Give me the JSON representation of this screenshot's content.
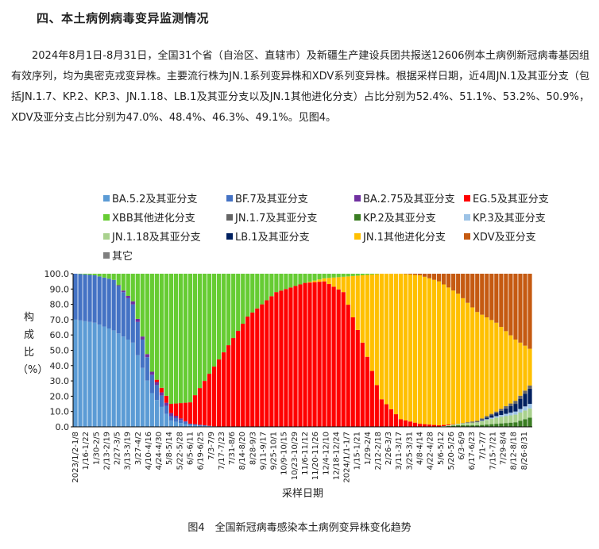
{
  "section_heading": "四、本土病例病毒变异监测情况",
  "paragraph": "2024年8月1日-8月31日，全国31个省（自治区、直辖市）及新疆生产建设兵团共报送12606例本土病例新冠病毒基因组有效序列，均为奥密克戎变异株。主要流行株为JN.1系列变异株和XDV系列变异株。根据采样日期，近4周JN.1及其亚分支（包括JN.1.7、KP.2、KP.3、JN.1.18、LB.1及其亚分支以及JN.1其他进化分支）占比分别为52.4%、51.1%、53.2%、50.9%，XDV及亚分支占比分别为47.0%、48.4%、46.3%、49.1%。见图4。",
  "figure_caption": "图4　全国新冠病毒感染本土病例变异株变化趋势",
  "chart_data": {
    "type": "bar",
    "stacked": true,
    "ylabel": "构成比（%）",
    "xlabel": "采样日期",
    "ylim": [
      0,
      100
    ],
    "yticks": [
      "0.0",
      "10.0",
      "20.0",
      "30.0",
      "40.0",
      "50.0",
      "60.0",
      "70.0",
      "80.0",
      "90.0",
      "100.0"
    ],
    "legend_placement": "top",
    "series": [
      {
        "name": "BA.5.2及其亚分支",
        "color": "#5b9bd5"
      },
      {
        "name": "BF.7及其亚分支",
        "color": "#4472c4"
      },
      {
        "name": "BA.2.75及其亚分支",
        "color": "#7030a0"
      },
      {
        "name": "EG.5及其亚分支",
        "color": "#ff0000"
      },
      {
        "name": "XBB其他进化分支",
        "color": "#66cc33"
      },
      {
        "name": "JN.1.7及其亚分支",
        "color": "#666666"
      },
      {
        "name": "KP.2及其亚分支",
        "color": "#3a7d22"
      },
      {
        "name": "KP.3及其亚分支",
        "color": "#9dc3e6"
      },
      {
        "name": "JN.1.18及其亚分支",
        "color": "#a9d18e"
      },
      {
        "name": "LB.1及其亚分支",
        "color": "#002060"
      },
      {
        "name": "JN.1其他进化分支",
        "color": "#ffc000"
      },
      {
        "name": "XDV及亚分支",
        "color": "#c55a11"
      },
      {
        "name": "其它",
        "color": "#7f7f7f"
      }
    ],
    "x_tick_labels": [
      "2023/1/2-1/8",
      "1/16-1/22",
      "1/30-2/5",
      "2/13-2/19",
      "2/27-3/5",
      "3/13-3/19",
      "3/27-4/2",
      "4/10-4/16",
      "4/24-4/30",
      "5/8-5/14",
      "5/22-5/28",
      "6/5-6/11",
      "6/19-6/25",
      "7/3-7/9",
      "7/17-7/23",
      "7/31-8/6",
      "8/14-8/20",
      "8/28-9/3",
      "9/11-9/17",
      "9/25-10/1",
      "10/9-10/15",
      "10/23-10/29",
      "11/6-11/12",
      "11/20-11/26",
      "12/4-12/10",
      "12/18-12/24",
      "2024/1/1-1/7",
      "1/15-1/21",
      "1/29-2/4",
      "2/12-2/18",
      "2/26-3/3",
      "3/11-3/17",
      "3/25-3/31",
      "4/8-4/14",
      "4/22-4/28",
      "5/6-5/12",
      "5/20-5/26",
      "6/3-6/9",
      "6/17-6/23",
      "7/1-7/7",
      "7/15-7/21",
      "7/29-8/4",
      "8/12-8/18",
      "8/26-8/31"
    ],
    "weekly_composition_keyframes": [
      {
        "week": 0,
        "BA.5.2": 70,
        "BF.7": 30
      },
      {
        "week": 4,
        "BA.5.2": 68,
        "BF.7": 31,
        "XBB": 1
      },
      {
        "week": 8,
        "BA.5.2": 63,
        "BF.7": 33,
        "XBB": 4
      },
      {
        "week": 12,
        "BA.5.2": 55,
        "BF.7": 25,
        "BA.2.75": 2,
        "XBB": 18
      },
      {
        "week": 16,
        "BA.5.2": 22,
        "BF.7": 12,
        "BA.2.75": 2,
        "XBB": 64
      },
      {
        "week": 20,
        "BA.5.2": 4,
        "BF.7": 3,
        "BA.2.75": 2,
        "EG.5": 6,
        "XBB": 85
      },
      {
        "week": 24,
        "BA.5.2": 1,
        "BF.7": 1,
        "EG.5": 14,
        "XBB": 84
      },
      {
        "week": 30,
        "EG.5": 44,
        "XBB": 56
      },
      {
        "week": 36,
        "EG.5": 72,
        "XBB": 28
      },
      {
        "week": 42,
        "EG.5": 88,
        "XBB": 12
      },
      {
        "week": 48,
        "EG.5": 94,
        "XBB": 6
      },
      {
        "week": 52,
        "EG.5": 95,
        "XBB": 3,
        "JN.1其他": 2
      },
      {
        "week": 56,
        "EG.5": 88,
        "XBB": 2,
        "JN.1其他": 10
      },
      {
        "week": 60,
        "EG.5": 55,
        "XBB": 1,
        "JN.1其他": 44
      },
      {
        "week": 64,
        "EG.5": 18,
        "JN.1其他": 82
      },
      {
        "week": 68,
        "EG.5": 5,
        "JN.1其他": 95
      },
      {
        "week": 72,
        "EG.5": 2,
        "JN.1其他": 97,
        "XDV": 1
      },
      {
        "week": 76,
        "EG.5": 1,
        "JN.1其他": 94,
        "XDV": 5
      },
      {
        "week": 80,
        "JN.1.18": 1,
        "KP.2": 1,
        "JN.1其他": 85,
        "XDV": 13
      },
      {
        "week": 84,
        "KP.2": 1,
        "JN.1.18": 2,
        "JN.1.7": 1,
        "JN.1其他": 71,
        "XDV": 25
      },
      {
        "week": 88,
        "KP.2": 2,
        "KP.3": 1,
        "JN.1.18": 4,
        "LB.1": 2,
        "JN.1.7": 1,
        "JN.1其他": 58,
        "XDV": 32
      },
      {
        "week": 92,
        "KP.2": 3,
        "KP.3": 2,
        "JN.1.18": 5,
        "LB.1": 5,
        "JN.1.7": 2,
        "JN.1其他": 40,
        "XDV": 43
      },
      {
        "week": 95,
        "KP.2": 6,
        "KP.3": 3,
        "JN.1.18": 6,
        "LB.1": 10,
        "JN.1.7": 2,
        "JN.1其他": 24,
        "XDV": 49
      }
    ]
  }
}
